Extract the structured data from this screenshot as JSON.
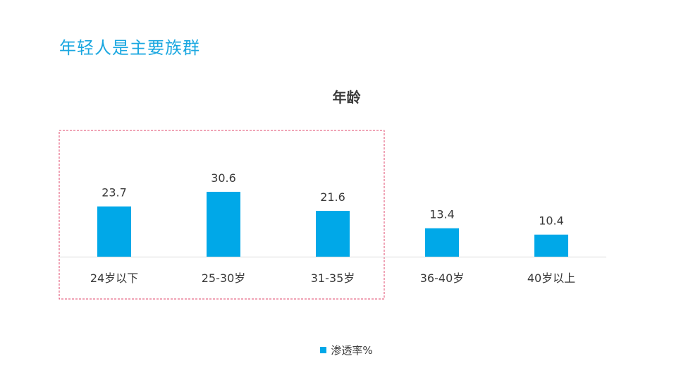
{
  "page_title": "年轻人是主要族群",
  "colors": {
    "title": "#1aa7e0",
    "bar": "#00a8e8",
    "highlight_box": "#e0486e"
  },
  "chart_data": {
    "type": "bar",
    "title": "年龄",
    "xlabel": "",
    "ylabel": "",
    "categories": [
      "24岁以下",
      "25-30岁",
      "31-35岁",
      "36-40岁",
      "40岁以上"
    ],
    "series": [
      {
        "name": "渗透率%",
        "values": [
          23.7,
          30.6,
          21.6,
          13.4,
          10.4
        ]
      }
    ],
    "ylim": [
      0,
      30.6
    ],
    "grid": false,
    "legend_position": "bottom",
    "highlighted_categories": [
      "24岁以下",
      "25-30岁",
      "31-35岁"
    ]
  }
}
